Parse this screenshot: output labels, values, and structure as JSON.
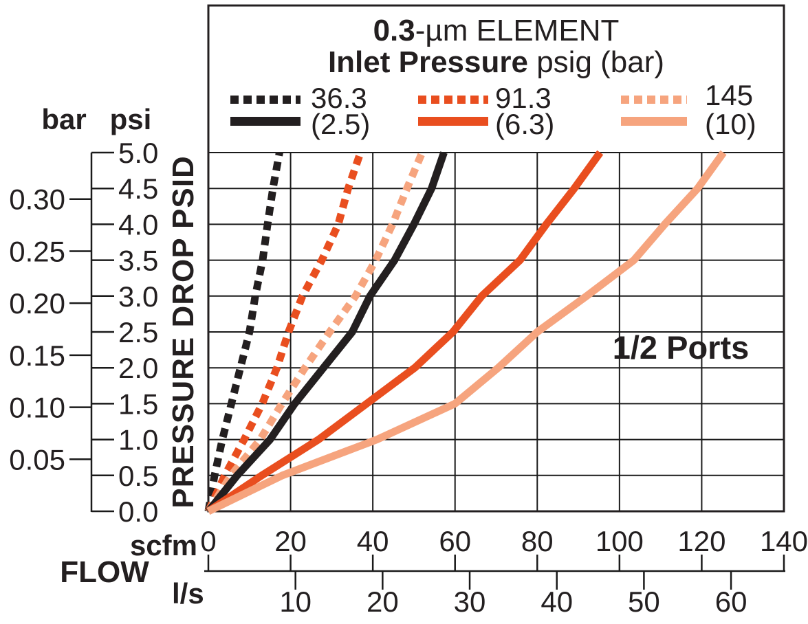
{
  "chart_data": {
    "type": "line",
    "title": {
      "em": "0.3",
      "rest": "-µm ELEMENT"
    },
    "subtitle": {
      "em": "Inlet Pressure",
      "rest": " psig (bar)"
    },
    "annotation": "1/2 Ports",
    "x_axis": {
      "label": "FLOW",
      "primary_unit": "scfm",
      "secondary_unit": "l/s",
      "xlim_scfm": [
        0,
        140
      ],
      "scfm_ticks": [
        "0",
        "20",
        "40",
        "60",
        "80",
        "100",
        "120",
        "140"
      ],
      "ls_ticks": [
        "10",
        "20",
        "30",
        "40",
        "50",
        "60"
      ],
      "ls_to_scfm": 2.1189,
      "grid": true
    },
    "y_axis": {
      "label": "PRESSURE DROP PSID",
      "primary_unit": "psi",
      "secondary_unit": "bar",
      "ylim_psi": [
        0,
        5
      ],
      "psi_ticks": [
        "0.0",
        "0.5",
        "1.0",
        "1.5",
        "2.0",
        "2.5",
        "3.0",
        "3.5",
        "4.0",
        "4.5",
        "5.0"
      ],
      "bar_ticks": [
        "0.05",
        "0.10",
        "0.15",
        "0.20",
        "0.25",
        "0.30"
      ],
      "bar_to_psi": 14.5038,
      "grid": true
    },
    "legend": {
      "columns": [
        {
          "dash_label": "36.3",
          "solid_label": "(2.5)",
          "color": "#231f20"
        },
        {
          "dash_label": "91.3",
          "solid_label": "(6.3)",
          "color": "#e94e1f"
        },
        {
          "dash_label": "145",
          "solid_label": "(10)",
          "color": "#f6a47e"
        }
      ],
      "note": "dashed swatch = inlet pressure in psig, solid swatch = inlet pressure in bar"
    },
    "series": [
      {
        "name": "36.3 psig (2.5 bar) dashed",
        "style": "dashed",
        "color": "#231f20",
        "points": [
          [
            0,
            0
          ],
          [
            1.5,
            0.5
          ],
          [
            3.4,
            1.0
          ],
          [
            5.6,
            1.5
          ],
          [
            7.8,
            2.0
          ],
          [
            10,
            2.5
          ],
          [
            11.4,
            3.0
          ],
          [
            13.2,
            3.5
          ],
          [
            14.4,
            4.0
          ],
          [
            15.7,
            4.5
          ],
          [
            17.3,
            5.0
          ]
        ]
      },
      {
        "name": "91.3 psig (6.3 bar) dashed",
        "style": "dashed",
        "color": "#e94e1f",
        "points": [
          [
            0,
            0
          ],
          [
            4,
            0.5
          ],
          [
            8.7,
            1.0
          ],
          [
            13.1,
            1.5
          ],
          [
            16.7,
            2.0
          ],
          [
            19.5,
            2.5
          ],
          [
            22.9,
            3.0
          ],
          [
            27.6,
            3.5
          ],
          [
            31.6,
            4.0
          ],
          [
            34,
            4.5
          ],
          [
            37,
            5.0
          ]
        ]
      },
      {
        "name": "145 psig (10 bar) dashed",
        "style": "dashed",
        "color": "#f6a47e",
        "points": [
          [
            0,
            0
          ],
          [
            5.5,
            0.5
          ],
          [
            12.6,
            1.0
          ],
          [
            17.9,
            1.5
          ],
          [
            23.5,
            2.0
          ],
          [
            29.5,
            2.5
          ],
          [
            35.8,
            3.0
          ],
          [
            40.7,
            3.5
          ],
          [
            44.8,
            4.0
          ],
          [
            48.3,
            4.5
          ],
          [
            52,
            5.0
          ]
        ]
      },
      {
        "name": "36.3 psig (2.5 bar) solid",
        "style": "solid",
        "color": "#231f20",
        "points": [
          [
            0,
            0
          ],
          [
            7,
            0.5
          ],
          [
            15,
            1.0
          ],
          [
            21,
            1.5
          ],
          [
            28,
            2.0
          ],
          [
            35,
            2.5
          ],
          [
            39.3,
            3.0
          ],
          [
            45.3,
            3.5
          ],
          [
            50,
            4.0
          ],
          [
            54.3,
            4.5
          ],
          [
            57.3,
            5.0
          ]
        ]
      },
      {
        "name": "91.3 psig (6.3 bar) solid",
        "style": "solid",
        "color": "#e94e1f",
        "points": [
          [
            0,
            0
          ],
          [
            13,
            0.5
          ],
          [
            26.8,
            1.0
          ],
          [
            38.5,
            1.5
          ],
          [
            50.2,
            2.0
          ],
          [
            59.5,
            2.5
          ],
          [
            66.5,
            3.0
          ],
          [
            75.8,
            3.5
          ],
          [
            82.2,
            4.0
          ],
          [
            89,
            4.5
          ],
          [
            95.3,
            5.0
          ]
        ]
      },
      {
        "name": "145 psig (10 bar) solid",
        "style": "solid",
        "color": "#f6a47e",
        "points": [
          [
            0,
            0
          ],
          [
            18,
            0.5
          ],
          [
            41,
            1.0
          ],
          [
            60,
            1.5
          ],
          [
            70.5,
            2.0
          ],
          [
            80,
            2.5
          ],
          [
            92,
            3.0
          ],
          [
            103.5,
            3.5
          ],
          [
            111,
            4.0
          ],
          [
            119,
            4.5
          ],
          [
            125.3,
            5.0
          ]
        ]
      }
    ]
  }
}
